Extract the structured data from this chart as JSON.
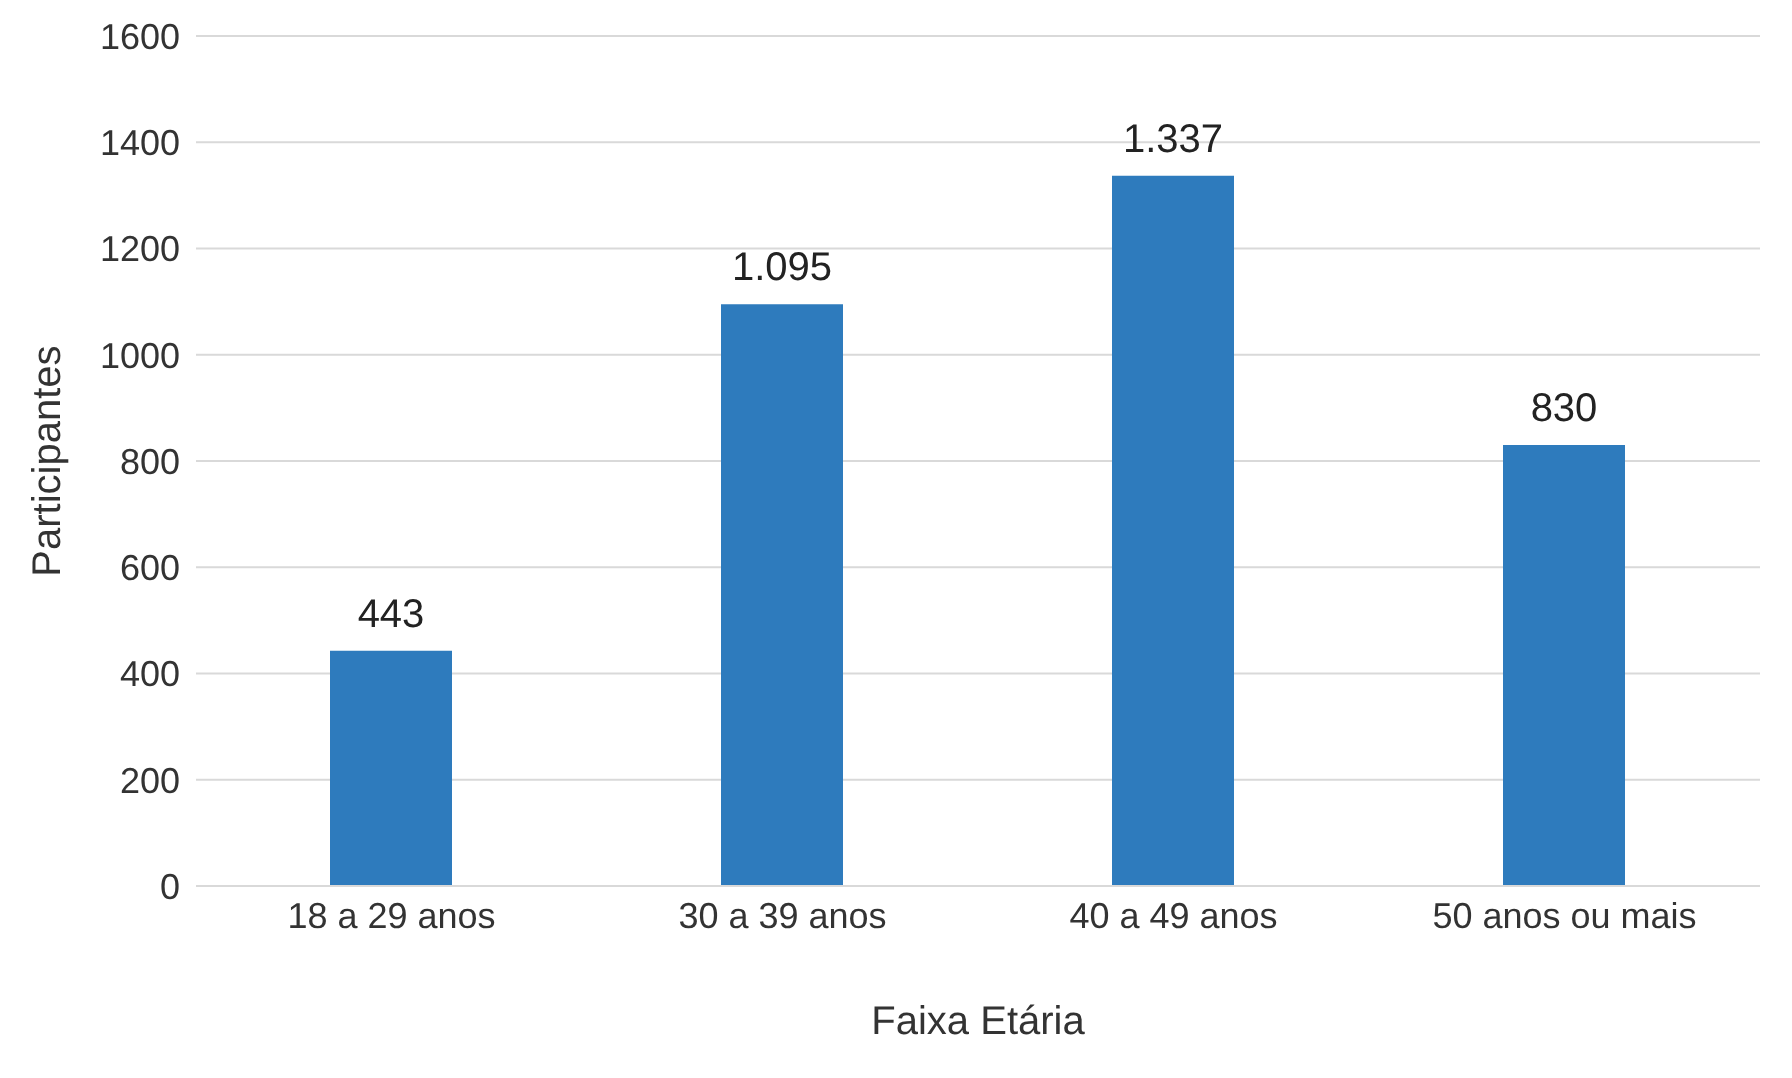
{
  "chart_data": {
    "type": "bar",
    "xlabel": "Faixa Etária",
    "ylabel": "Participantes",
    "categories": [
      "18 a 29 anos",
      "30 a 39 anos",
      "40 a 49 anos",
      "50 anos ou mais"
    ],
    "values": [
      443,
      1095,
      1337,
      830
    ],
    "value_labels": [
      "443",
      "1.095",
      "1.337",
      "830"
    ],
    "color": "#2e7bbd",
    "ylim": [
      0,
      1600
    ],
    "yticks": [
      0,
      200,
      400,
      600,
      800,
      1000,
      1200,
      1400,
      1600
    ],
    "grid": "y"
  }
}
